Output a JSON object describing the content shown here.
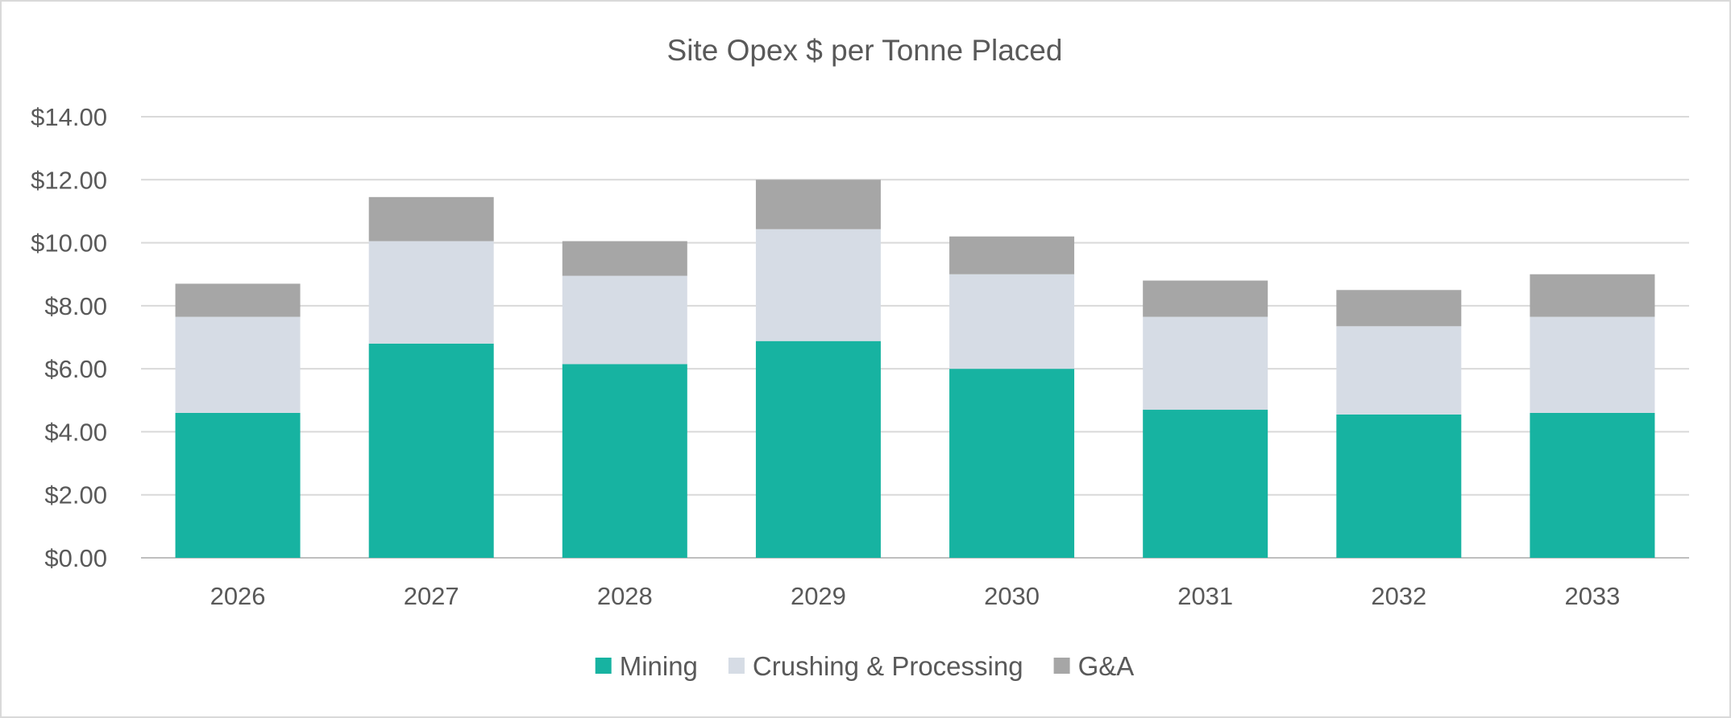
{
  "chart_data": {
    "type": "bar",
    "stacked": true,
    "title": "Site Opex $ per Tonne Placed",
    "xlabel": "",
    "ylabel": "",
    "categories": [
      "2026",
      "2027",
      "2028",
      "2029",
      "2030",
      "2031",
      "2032",
      "2033"
    ],
    "ylim": [
      0,
      14
    ],
    "yticks": [
      0,
      2,
      4,
      6,
      8,
      10,
      12,
      14
    ],
    "ytick_labels": [
      "$0.00",
      "$2.00",
      "$4.00",
      "$6.00",
      "$8.00",
      "$10.00",
      "$12.00",
      "$14.00"
    ],
    "grid": true,
    "legend_position": "bottom",
    "series": [
      {
        "name": "Mining",
        "color": "#17b3a1",
        "values": [
          4.6,
          6.8,
          6.15,
          6.88,
          6.0,
          4.7,
          4.55,
          4.6
        ]
      },
      {
        "name": "Crushing & Processing",
        "color": "#d6dce5",
        "values": [
          3.05,
          3.25,
          2.8,
          3.55,
          3.0,
          2.95,
          2.8,
          3.05
        ]
      },
      {
        "name": "G&A",
        "color": "#a6a6a6",
        "values": [
          1.05,
          1.4,
          1.1,
          1.57,
          1.2,
          1.15,
          1.15,
          1.35
        ]
      }
    ]
  }
}
